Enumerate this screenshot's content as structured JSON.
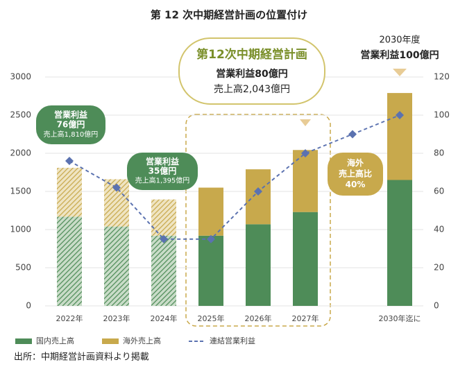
{
  "chart_data": {
    "type": "bar",
    "title": "第 12 次中期経営計画の位置付け",
    "categories": [
      "2022年",
      "2023年",
      "2024年",
      "2025年",
      "2026年",
      "2027年",
      null,
      "2030年迄に"
    ],
    "series": [
      {
        "name": "国内売上高",
        "color": "#4e8c58",
        "values": [
          1170,
          1040,
          920,
          920,
          1070,
          1230,
          null,
          1650
        ]
      },
      {
        "name": "海外売上高",
        "color": "#c8a94c",
        "values": [
          640,
          620,
          475,
          630,
          720,
          813,
          null,
          1140
        ]
      },
      {
        "name": "連結営業利益",
        "color": "#5b72b0",
        "axis": "y2",
        "type": "line",
        "values": [
          76,
          62,
          35,
          35,
          60,
          80,
          90,
          100
        ]
      }
    ],
    "hatched": [
      true,
      true,
      true,
      false,
      false,
      false,
      false,
      false
    ],
    "ylim": [
      0,
      3000
    ],
    "yticks": [
      0,
      500,
      1000,
      1500,
      2000,
      2500,
      3000
    ],
    "y2lim": [
      0,
      120
    ],
    "y2ticks": [
      0,
      20,
      40,
      60,
      80,
      100,
      120
    ],
    "grid": true,
    "annotations": [
      {
        "style": "green",
        "lines": [
          "営業利益",
          "76億円",
          "売上高1,810億円"
        ]
      },
      {
        "style": "green",
        "lines": [
          "営業利益",
          "35億円",
          "売上高1,395億円"
        ]
      },
      {
        "style": "gold",
        "lines": [
          "海外",
          "売上高比",
          "40%"
        ]
      },
      {
        "style": "plan",
        "lines": [
          "第12次中期経営計画",
          "営業利益80億円",
          "売上高2,043億円"
        ]
      },
      {
        "style": "plain",
        "lines": [
          "2030年度",
          "営業利益100億円"
        ]
      }
    ],
    "source": "出所：中期経営計画資料より掲載"
  }
}
